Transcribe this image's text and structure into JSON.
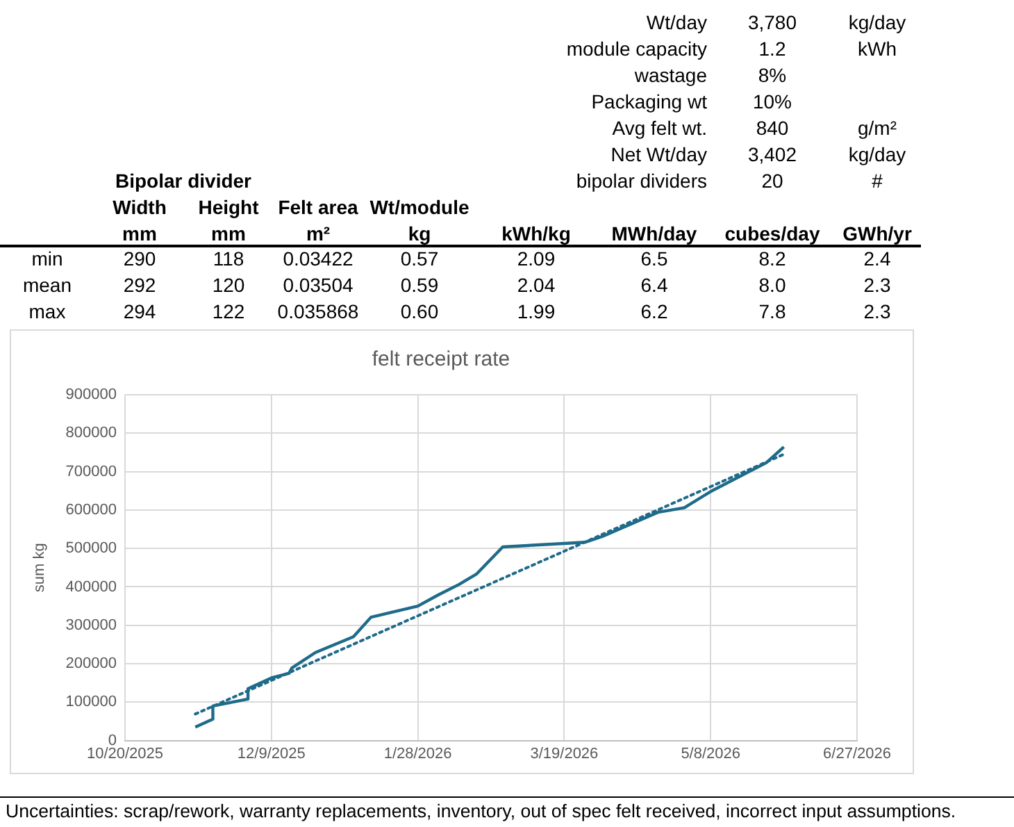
{
  "chart_data": [
    {
      "type": "other",
      "annotations": [
        "Wt/day",
        "3,780",
        "kg/day",
        "module capacity",
        "1.2",
        "kWh",
        "wastage",
        "8%",
        "Packaging wt",
        "10%",
        "Avg felt wt.",
        "840",
        "g/m²",
        "Net Wt/day",
        "3,402",
        "kg/day",
        "Bipolar divider",
        "bipolar dividers",
        "20",
        "#",
        "Width",
        "Height",
        "Felt area",
        "Wt/module",
        "mm",
        "mm",
        "m²",
        "kg",
        "kWh/kg",
        "MWh/day",
        "cubes/day",
        "GWh/yr",
        "min",
        "290",
        "118",
        "0.03422",
        "0.57",
        "2.09",
        "6.5",
        "8.2",
        "2.4",
        "mean",
        "292",
        "120",
        "0.03504",
        "0.59",
        "2.04",
        "6.4",
        "8.0",
        "2.3",
        "max",
        "294",
        "122",
        "0.035868",
        "0.60",
        "1.99",
        "6.2",
        "7.8",
        "2.3"
      ]
    },
    {
      "type": "line",
      "title": "felt receipt rate",
      "ylabel": "sum kg",
      "xlim": [
        "2025-10-20",
        "2026-06-27"
      ],
      "xticks": [
        {
          "value": "2025-10-20",
          "label": "10/20/2025"
        },
        {
          "value": "2025-12-09",
          "label": "12/9/2025"
        },
        {
          "value": "2026-01-28",
          "label": "1/28/2026"
        },
        {
          "value": "2026-03-19",
          "label": "3/19/2026"
        },
        {
          "value": "2026-05-08",
          "label": "5/8/2026"
        },
        {
          "value": "2026-06-27",
          "label": "6/27/2026"
        }
      ],
      "ylim": [
        0,
        900000
      ],
      "yticks": [
        0,
        100000,
        200000,
        300000,
        400000,
        500000,
        600000,
        700000,
        800000,
        900000
      ],
      "grid": true,
      "legend": false,
      "marker": "none",
      "annotations": [
        "Uncertainties: scrap/rework, warranty replacements, inventory, out of spec felt received, incorrect input assumptions."
      ],
      "series": [
        {
          "color": "#1f6b8a",
          "line_style": "solid",
          "x": [
            "2025-11-13",
            "2025-11-19",
            "2025-11-19",
            "2025-12-01",
            "2025-12-01",
            "2025-12-09",
            "2025-12-15",
            "2025-12-16",
            "2025-12-24",
            "2026-01-06",
            "2026-01-12",
            "2026-01-28",
            "2026-02-04",
            "2026-02-11",
            "2026-02-17",
            "2026-02-26",
            "2026-03-19",
            "2026-03-26",
            "2026-04-01",
            "2026-04-20",
            "2026-04-29",
            "2026-05-08",
            "2026-05-27",
            "2026-06-02"
          ],
          "values": [
            35000,
            56000,
            90000,
            108000,
            135000,
            163000,
            175000,
            189000,
            229000,
            270000,
            321000,
            350000,
            379000,
            406000,
            433000,
            504000,
            513000,
            516000,
            531000,
            594000,
            606000,
            648000,
            723000,
            764000
          ]
        },
        {
          "color": "#1f6b8a",
          "line_style": "dotted",
          "x": [
            "2025-11-13",
            "2026-06-02"
          ],
          "values": [
            69000,
            745000
          ]
        }
      ]
    }
  ]
}
